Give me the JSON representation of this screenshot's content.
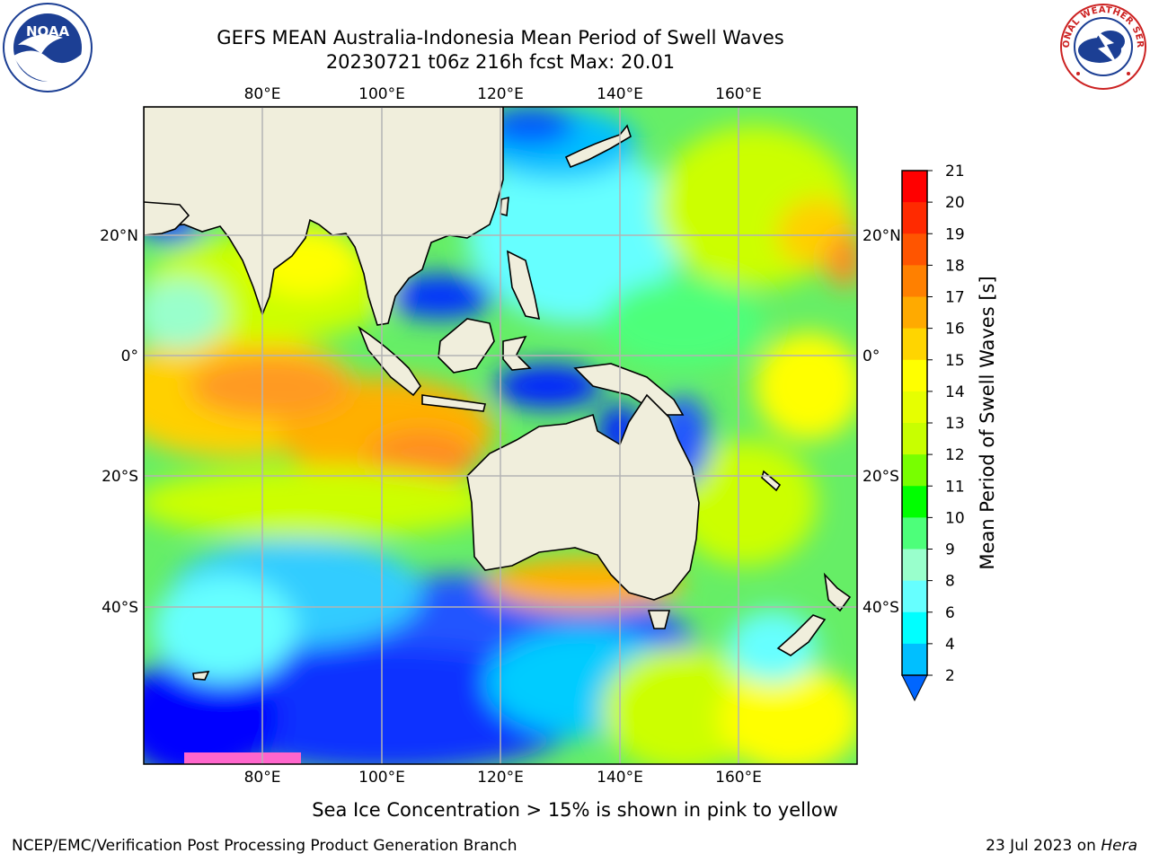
{
  "title_line1": "GEFS MEAN Australia-Indonesia Mean Period of Swell Waves",
  "title_line2": "20230721 t06z 216h fcst   Max: 20.01",
  "map": {
    "lon_labels": [
      "80°E",
      "100°E",
      "120°E",
      "140°E",
      "160°E"
    ],
    "lat_labels": [
      "20°N",
      "0°",
      "20°S",
      "40°S"
    ]
  },
  "colorbar": {
    "label": "Mean Period of Swell Waves [s]",
    "ticks": [
      "21",
      "20",
      "19",
      "18",
      "17",
      "16",
      "15",
      "14",
      "13",
      "12",
      "11",
      "10",
      "9",
      "8",
      "6",
      "4",
      "2"
    ],
    "colors": [
      "#ff0000",
      "#ff2a00",
      "#ff5500",
      "#ff8000",
      "#ffaa00",
      "#ffd500",
      "#ffff00",
      "#e6ff00",
      "#c8ff00",
      "#78ff00",
      "#00ff00",
      "#4dff7a",
      "#99ffcc",
      "#66ffff",
      "#00ffff",
      "#00bfff",
      "#0066ff"
    ]
  },
  "note": "Sea Ice Concentration > 15% is shown in pink to yellow",
  "footer_left": "NCEP/EMC/Verification Post Processing Product Generation Branch",
  "footer_date": "23 Jul 2023 on",
  "footer_machine": "Hera",
  "logos": {
    "left": "NOAA",
    "right": "NATIONAL WEATHER SERVICE"
  }
}
